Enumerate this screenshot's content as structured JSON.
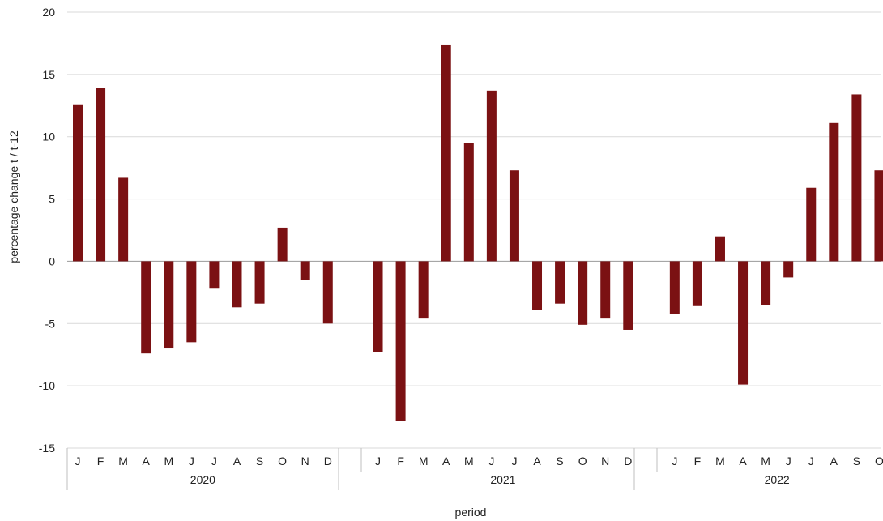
{
  "chart_data": {
    "type": "bar",
    "ylabel": "percentage change t / t-12",
    "xlabel": "period",
    "ylim": [
      -15,
      20
    ],
    "yticks": [
      20,
      15,
      10,
      5,
      0,
      -5,
      -10,
      -15
    ],
    "grid": true,
    "bar_color": "#7b1113",
    "groups": [
      {
        "year": "2020",
        "months": [
          "J",
          "F",
          "M",
          "A",
          "M",
          "J",
          "J",
          "A",
          "S",
          "O",
          "N",
          "D"
        ],
        "values": [
          12.6,
          13.9,
          6.7,
          -7.4,
          -7.0,
          -6.5,
          -2.2,
          -3.7,
          -3.4,
          2.7,
          -1.5,
          -5.0
        ]
      },
      {
        "year": "2021",
        "months": [
          "J",
          "F",
          "M",
          "A",
          "M",
          "J",
          "J",
          "A",
          "S",
          "O",
          "N",
          "D"
        ],
        "values": [
          -7.3,
          -12.8,
          -4.6,
          17.4,
          9.5,
          13.7,
          7.3,
          -3.9,
          -3.4,
          -5.1,
          -4.6,
          -5.5
        ]
      },
      {
        "year": "2022",
        "months": [
          "J",
          "F",
          "M",
          "A",
          "M",
          "J",
          "J",
          "A",
          "S",
          "O"
        ],
        "values": [
          -4.2,
          -3.6,
          2.0,
          -9.9,
          -3.5,
          -1.3,
          5.9,
          11.1,
          13.4,
          7.3
        ]
      }
    ]
  }
}
